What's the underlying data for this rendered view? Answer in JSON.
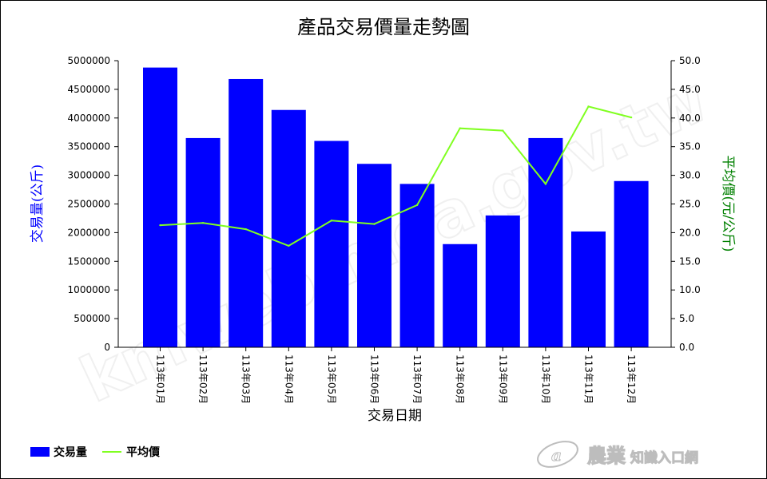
{
  "chart_data": {
    "type": "bar",
    "title": "產品交易價量走勢圖",
    "xlabel": "交易日期",
    "ylabel": "交易量(公斤)",
    "y2label": "平均價(元/公斤)",
    "categories": [
      "113年01月",
      "113年02月",
      "113年03月",
      "113年04月",
      "113年05月",
      "113年06月",
      "113年07月",
      "113年08月",
      "113年09月",
      "113年10月",
      "113年11月",
      "113年12月"
    ],
    "ylim": [
      0,
      5000000
    ],
    "y2lim": [
      0,
      50
    ],
    "yticks": [
      "0",
      "500000",
      "1000000",
      "1500000",
      "2000000",
      "2500000",
      "3000000",
      "3500000",
      "4000000",
      "4500000",
      "5000000"
    ],
    "y2ticks": [
      "0.0",
      "5.0",
      "10.0",
      "15.0",
      "20.0",
      "25.0",
      "30.0",
      "35.0",
      "40.0",
      "45.0",
      "50.0"
    ],
    "series": [
      {
        "name": "交易量",
        "type": "bar",
        "axis": "left",
        "color": "#0000ff",
        "values": [
          4880000,
          3650000,
          4680000,
          4140000,
          3600000,
          3200000,
          2850000,
          1800000,
          2300000,
          3650000,
          2020000,
          2900000
        ]
      },
      {
        "name": "平均價",
        "type": "line",
        "axis": "right",
        "color": "#80ff20",
        "values": [
          21.3,
          21.7,
          20.6,
          17.7,
          22.1,
          21.5,
          24.8,
          38.2,
          37.8,
          28.5,
          42.0,
          40.1
        ]
      }
    ],
    "legend_position": "bottom-left",
    "grid": false,
    "left_axis_color": "#0000ff",
    "right_axis_color": "#008000"
  },
  "watermark": "kmweb.moa.gov.tw",
  "logo": {
    "main": "農業",
    "sub": "知識入口網"
  }
}
